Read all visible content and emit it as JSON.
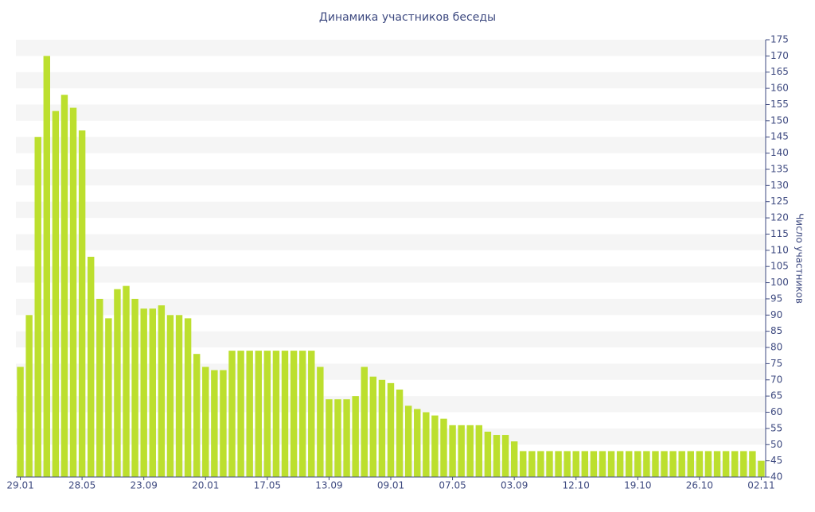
{
  "chart_data": {
    "type": "bar",
    "title": "Динамика участников беседы",
    "y_label": "Число участников",
    "categories": [
      "29.01",
      null,
      null,
      null,
      null,
      null,
      null,
      "28.05",
      null,
      null,
      null,
      null,
      null,
      null,
      "23.09",
      null,
      null,
      null,
      null,
      null,
      null,
      "20.01",
      null,
      null,
      null,
      null,
      null,
      null,
      "17.05",
      null,
      null,
      null,
      null,
      null,
      null,
      "13.09",
      null,
      null,
      null,
      null,
      null,
      null,
      "09.01",
      null,
      null,
      null,
      null,
      null,
      null,
      "07.05",
      null,
      null,
      null,
      null,
      null,
      null,
      "03.09",
      null,
      null,
      null,
      null,
      null,
      null,
      "12.10",
      null,
      null,
      null,
      null,
      null,
      null,
      "19.10",
      null,
      null,
      null,
      null,
      null,
      null,
      "26.10",
      null,
      null,
      null,
      null,
      null,
      null,
      "02.11"
    ],
    "values": [
      74,
      90,
      145,
      170,
      153,
      158,
      154,
      147,
      108,
      95,
      89,
      98,
      99,
      95,
      92,
      92,
      93,
      90,
      90,
      89,
      78,
      74,
      73,
      73,
      79,
      79,
      79,
      79,
      79,
      79,
      79,
      79,
      79,
      79,
      74,
      64,
      64,
      64,
      65,
      74,
      71,
      70,
      69,
      67,
      62,
      61,
      60,
      59,
      58,
      56,
      56,
      56,
      56,
      54,
      53,
      53,
      51,
      48,
      48,
      48,
      48,
      48,
      48,
      48,
      48,
      48,
      48,
      48,
      48,
      48,
      48,
      48,
      48,
      48,
      48,
      48,
      48,
      48,
      48,
      48,
      48,
      48,
      48,
      48,
      45
    ],
    "color": "#bcdf2e",
    "ylim": [
      40,
      175
    ],
    "yticks": [
      40,
      45,
      50,
      55,
      60,
      65,
      70,
      75,
      80,
      85,
      90,
      95,
      100,
      105,
      110,
      115,
      120,
      125,
      130,
      135,
      140,
      145,
      150,
      155,
      160,
      165,
      170,
      175
    ],
    "grid": true,
    "y_axis_side": "right"
  }
}
